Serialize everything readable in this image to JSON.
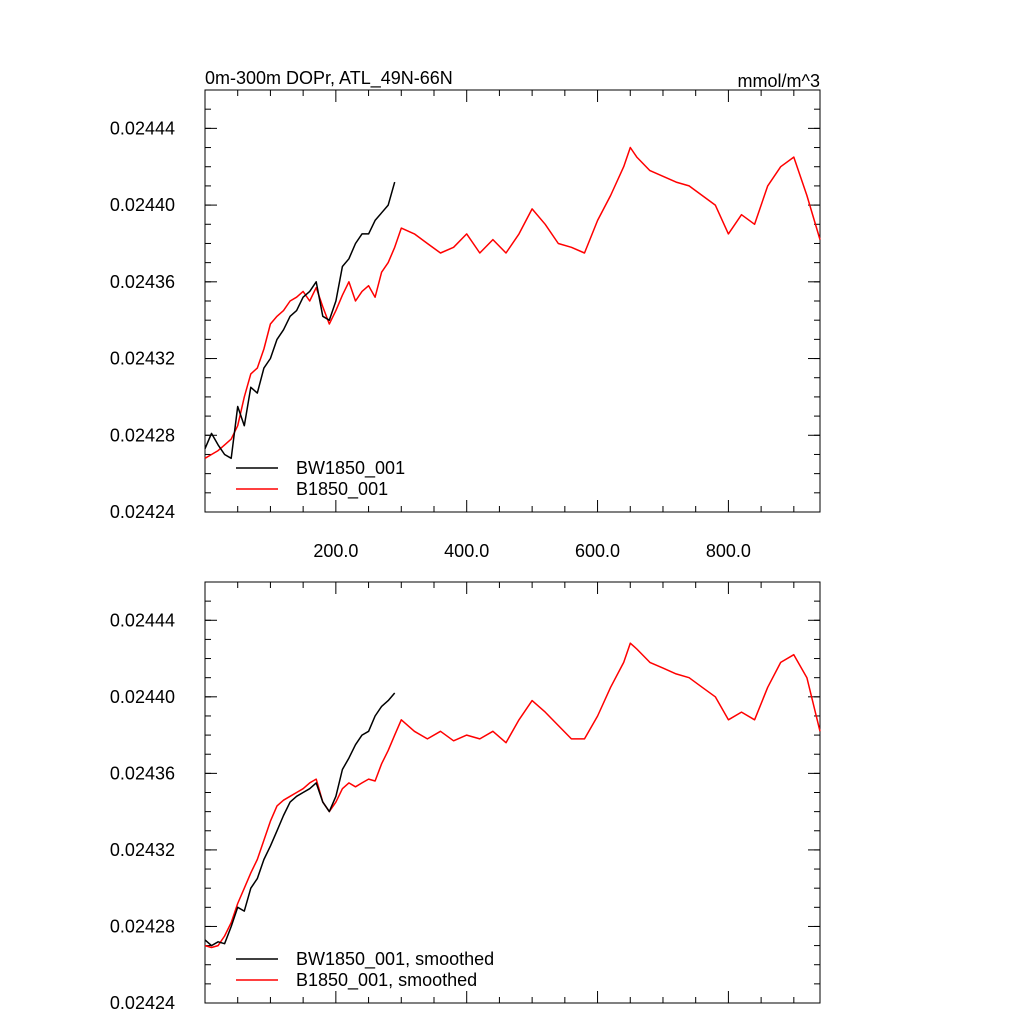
{
  "chart_data": [
    {
      "type": "line",
      "title": "0m-300m DOPr, ATL_49N-66N",
      "units": "mmol/m^3",
      "xlim": [
        0,
        940
      ],
      "ylim": [
        0.02424,
        0.02446
      ],
      "x_ticks": [
        200,
        400,
        600,
        800
      ],
      "x_tick_labels": [
        "200.0",
        "400.0",
        "600.0",
        "800.0"
      ],
      "y_ticks": [
        0.02424,
        0.02428,
        0.02432,
        0.02436,
        0.0244,
        0.02444
      ],
      "y_tick_labels": [
        "0.02424",
        "0.02428",
        "0.02432",
        "0.02436",
        "0.02440",
        "0.02444"
      ],
      "legend_position": "bottom-left",
      "series": [
        {
          "name": "BW1850_001",
          "color": "#000000",
          "x": [
            0,
            10,
            20,
            30,
            40,
            50,
            60,
            70,
            80,
            90,
            100,
            110,
            120,
            130,
            140,
            150,
            160,
            170,
            180,
            190,
            200,
            210,
            220,
            230,
            240,
            250,
            260,
            270,
            280,
            290
          ],
          "values": [
            0.024273,
            0.024281,
            0.024275,
            0.02427,
            0.024268,
            0.024295,
            0.024285,
            0.024305,
            0.024302,
            0.024315,
            0.02432,
            0.02433,
            0.024335,
            0.024342,
            0.024345,
            0.024352,
            0.024355,
            0.02436,
            0.024342,
            0.02434,
            0.02435,
            0.024368,
            0.024372,
            0.02438,
            0.024385,
            0.024385,
            0.024392,
            0.024396,
            0.0244,
            0.024412
          ]
        },
        {
          "name": "B1850_001",
          "color": "#ff0000",
          "x": [
            0,
            10,
            20,
            30,
            40,
            50,
            60,
            70,
            80,
            90,
            100,
            110,
            120,
            130,
            140,
            150,
            160,
            170,
            180,
            190,
            200,
            210,
            220,
            230,
            240,
            250,
            260,
            270,
            280,
            290,
            300,
            320,
            340,
            360,
            380,
            400,
            420,
            440,
            460,
            480,
            500,
            520,
            540,
            560,
            580,
            600,
            620,
            640,
            650,
            660,
            680,
            700,
            720,
            740,
            760,
            780,
            800,
            820,
            840,
            860,
            880,
            900,
            920,
            940
          ],
          "values": [
            0.024268,
            0.02427,
            0.024272,
            0.024275,
            0.024278,
            0.024285,
            0.0243,
            0.024312,
            0.024315,
            0.024325,
            0.024338,
            0.024342,
            0.024345,
            0.02435,
            0.024352,
            0.024355,
            0.02435,
            0.024357,
            0.024347,
            0.024338,
            0.024345,
            0.024353,
            0.02436,
            0.02435,
            0.024355,
            0.024358,
            0.024352,
            0.024365,
            0.02437,
            0.024378,
            0.024388,
            0.024385,
            0.02438,
            0.024375,
            0.024378,
            0.024385,
            0.024375,
            0.024382,
            0.024375,
            0.024385,
            0.024398,
            0.02439,
            0.02438,
            0.024378,
            0.024375,
            0.024392,
            0.024405,
            0.02442,
            0.02443,
            0.024425,
            0.024418,
            0.024415,
            0.024412,
            0.02441,
            0.024405,
            0.0244,
            0.024385,
            0.024395,
            0.02439,
            0.02441,
            0.02442,
            0.024425,
            0.024405,
            0.024382
          ]
        }
      ]
    },
    {
      "type": "line",
      "xlim": [
        0,
        940
      ],
      "ylim": [
        0.02424,
        0.02446
      ],
      "x_ticks": [
        200,
        400,
        600,
        800
      ],
      "y_ticks": [
        0.02424,
        0.02428,
        0.02432,
        0.02436,
        0.0244,
        0.02444
      ],
      "y_tick_labels": [
        "0.02424",
        "0.02428",
        "0.02432",
        "0.02436",
        "0.02440",
        "0.02444"
      ],
      "legend_position": "bottom-left",
      "series": [
        {
          "name": "BW1850_001, smoothed",
          "color": "#000000",
          "x": [
            0,
            10,
            20,
            30,
            40,
            50,
            60,
            70,
            80,
            90,
            100,
            110,
            120,
            130,
            140,
            150,
            160,
            170,
            180,
            190,
            200,
            210,
            220,
            230,
            240,
            250,
            260,
            270,
            280,
            290
          ],
          "values": [
            0.024273,
            0.02427,
            0.024272,
            0.024271,
            0.02428,
            0.02429,
            0.024288,
            0.0243,
            0.024305,
            0.024315,
            0.024322,
            0.02433,
            0.024338,
            0.024345,
            0.024348,
            0.02435,
            0.024352,
            0.024355,
            0.024345,
            0.02434,
            0.024348,
            0.024362,
            0.024368,
            0.024375,
            0.02438,
            0.024382,
            0.02439,
            0.024395,
            0.024398,
            0.024402
          ]
        },
        {
          "name": "B1850_001, smoothed",
          "color": "#ff0000",
          "x": [
            0,
            10,
            20,
            30,
            40,
            50,
            60,
            70,
            80,
            90,
            100,
            110,
            120,
            130,
            140,
            150,
            160,
            170,
            180,
            190,
            200,
            210,
            220,
            230,
            240,
            250,
            260,
            270,
            280,
            290,
            300,
            320,
            340,
            360,
            380,
            400,
            420,
            440,
            460,
            480,
            500,
            520,
            540,
            560,
            580,
            600,
            620,
            640,
            650,
            660,
            680,
            700,
            720,
            740,
            760,
            780,
            800,
            820,
            840,
            860,
            880,
            900,
            920,
            940
          ],
          "values": [
            0.02427,
            0.024269,
            0.02427,
            0.024275,
            0.024282,
            0.024292,
            0.0243,
            0.024308,
            0.024315,
            0.024325,
            0.024335,
            0.024343,
            0.024346,
            0.024348,
            0.02435,
            0.024352,
            0.024355,
            0.024357,
            0.024345,
            0.02434,
            0.024345,
            0.024352,
            0.024355,
            0.024353,
            0.024355,
            0.024357,
            0.024356,
            0.024365,
            0.024372,
            0.02438,
            0.024388,
            0.024382,
            0.024378,
            0.024382,
            0.024377,
            0.02438,
            0.024378,
            0.024382,
            0.024376,
            0.024388,
            0.024398,
            0.024392,
            0.024385,
            0.024378,
            0.024378,
            0.02439,
            0.024405,
            0.024418,
            0.024428,
            0.024425,
            0.024418,
            0.024415,
            0.024412,
            0.02441,
            0.024405,
            0.0244,
            0.024388,
            0.024392,
            0.024388,
            0.024405,
            0.024418,
            0.024422,
            0.02441,
            0.024382
          ]
        }
      ]
    }
  ]
}
